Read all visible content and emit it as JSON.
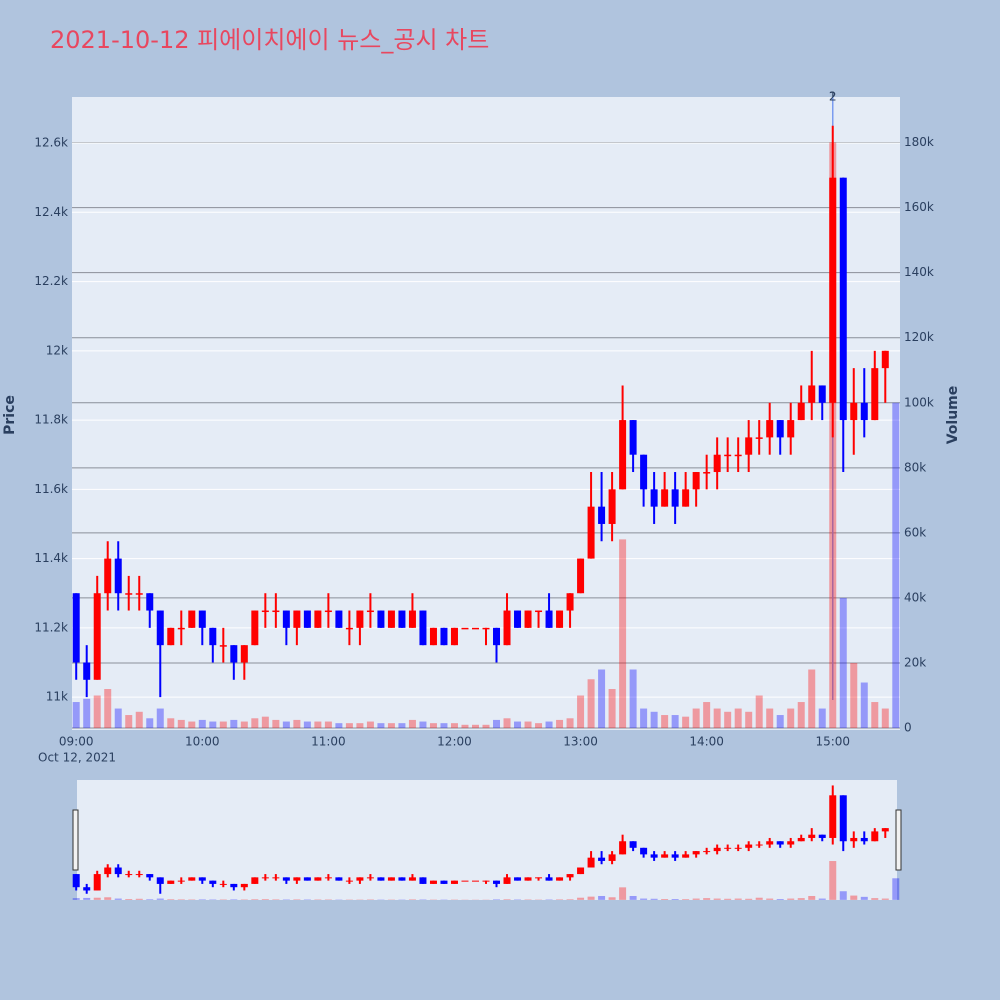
{
  "chart_data": {
    "type": "candlestick",
    "title": "2021-10-12 피에이치에이 뉴스_공시 차트",
    "ylabel": "Price",
    "y2label": "Volume",
    "x_date_label": "Oct 12, 2021",
    "increasing_color": "#ff0000",
    "decreasing_color": "#0000ff",
    "x": [
      "2021-10-12 09:00",
      "2021-10-12 09:05",
      "2021-10-12 09:10",
      "2021-10-12 09:15",
      "2021-10-12 09:20",
      "2021-10-12 09:25",
      "2021-10-12 09:30",
      "2021-10-12 09:35",
      "2021-10-12 09:40",
      "2021-10-12 09:45",
      "2021-10-12 09:50",
      "2021-10-12 09:55",
      "2021-10-12 10:00",
      "2021-10-12 10:05",
      "2021-10-12 10:10",
      "2021-10-12 10:15",
      "2021-10-12 10:20",
      "2021-10-12 10:25",
      "2021-10-12 10:30",
      "2021-10-12 10:35",
      "2021-10-12 10:40",
      "2021-10-12 10:45",
      "2021-10-12 10:50",
      "2021-10-12 10:55",
      "2021-10-12 11:00",
      "2021-10-12 11:05",
      "2021-10-12 11:10",
      "2021-10-12 11:15",
      "2021-10-12 11:20",
      "2021-10-12 11:25",
      "2021-10-12 11:30",
      "2021-10-12 11:35",
      "2021-10-12 11:40",
      "2021-10-12 11:45",
      "2021-10-12 11:50",
      "2021-10-12 11:55",
      "2021-10-12 12:00",
      "2021-10-12 12:05",
      "2021-10-12 12:10",
      "2021-10-12 12:15",
      "2021-10-12 12:20",
      "2021-10-12 12:25",
      "2021-10-12 12:30",
      "2021-10-12 12:35",
      "2021-10-12 12:40",
      "2021-10-12 12:45",
      "2021-10-12 12:50",
      "2021-10-12 12:55",
      "2021-10-12 13:00",
      "2021-10-12 13:05",
      "2021-10-12 13:10",
      "2021-10-12 13:15",
      "2021-10-12 13:20",
      "2021-10-12 13:25",
      "2021-10-12 13:30",
      "2021-10-12 13:35",
      "2021-10-12 13:40",
      "2021-10-12 13:45",
      "2021-10-12 13:50",
      "2021-10-12 13:55",
      "2021-10-12 14:00",
      "2021-10-12 14:05",
      "2021-10-12 14:10",
      "2021-10-12 14:15",
      "2021-10-12 14:20",
      "2021-10-12 14:25",
      "2021-10-12 14:30",
      "2021-10-12 14:35",
      "2021-10-12 14:40",
      "2021-10-12 14:45",
      "2021-10-12 14:50",
      "2021-10-12 14:55",
      "2021-10-12 15:00",
      "2021-10-12 15:05",
      "2021-10-12 15:10",
      "2021-10-12 15:15",
      "2021-10-12 15:20",
      "2021-10-12 15:25",
      "2021-10-12 15:30"
    ],
    "open": [
      11300,
      11100,
      11050,
      11300,
      11400,
      11300,
      11300,
      11300,
      11250,
      11150,
      11200,
      11200,
      11250,
      11200,
      11150,
      11150,
      11100,
      11150,
      11250,
      11250,
      11250,
      11200,
      11250,
      11200,
      11250,
      11250,
      11200,
      11200,
      11250,
      11250,
      11200,
      11250,
      11200,
      11250,
      11150,
      11200,
      11150,
      11200,
      11200,
      11200,
      11200,
      11150,
      11250,
      11200,
      11250,
      11250,
      11200,
      11250,
      11300,
      11400,
      11550,
      11500,
      11600,
      11800,
      11700,
      11600,
      11550,
      11600,
      11550,
      11600,
      11650,
      11650,
      11700,
      11700,
      11700,
      11750,
      11750,
      11800,
      11750,
      11800,
      11850,
      11900,
      11850,
      12500,
      11800,
      11850,
      11800,
      11950,
      null
    ],
    "high": [
      11300,
      11150,
      11350,
      11450,
      11450,
      11350,
      11350,
      11300,
      11250,
      11200,
      11250,
      11250,
      11250,
      11200,
      11200,
      11150,
      11150,
      11250,
      11300,
      11300,
      11250,
      11250,
      11250,
      11250,
      11300,
      11250,
      11250,
      11250,
      11300,
      11250,
      11250,
      11250,
      11300,
      11250,
      11200,
      11200,
      11200,
      11200,
      11200,
      11200,
      11200,
      11300,
      11250,
      11250,
      11250,
      11300,
      11250,
      11300,
      11400,
      11650,
      11650,
      11650,
      11900,
      11800,
      11700,
      11650,
      11650,
      11650,
      11650,
      11650,
      11700,
      11750,
      11750,
      11750,
      11800,
      11800,
      11850,
      11800,
      11850,
      11900,
      12000,
      11900,
      12650,
      12500,
      11950,
      11950,
      12000,
      12000,
      null
    ],
    "low": [
      11050,
      11000,
      11050,
      11250,
      11250,
      11250,
      11250,
      11200,
      11000,
      11150,
      11150,
      11200,
      11150,
      11100,
      11100,
      11050,
      11050,
      11150,
      11200,
      11200,
      11150,
      11150,
      11200,
      11200,
      11200,
      11200,
      11150,
      11150,
      11200,
      11200,
      11200,
      11200,
      11200,
      11150,
      11150,
      11150,
      11150,
      11200,
      11200,
      11150,
      11100,
      11150,
      11200,
      11200,
      11200,
      11200,
      11200,
      11200,
      11300,
      11400,
      11450,
      11450,
      11600,
      11650,
      11550,
      11500,
      11550,
      11500,
      11550,
      11550,
      11600,
      11600,
      11650,
      11650,
      11650,
      11700,
      11700,
      11700,
      11700,
      11800,
      11800,
      11800,
      11750,
      11650,
      11700,
      11750,
      11800,
      11850,
      null
    ],
    "close": [
      11100,
      11050,
      11300,
      11400,
      11300,
      11300,
      11300,
      11250,
      11150,
      11200,
      11200,
      11250,
      11200,
      11150,
      11150,
      11100,
      11150,
      11250,
      11250,
      11250,
      11200,
      11250,
      11200,
      11250,
      11250,
      11200,
      11200,
      11250,
      11250,
      11200,
      11250,
      11200,
      11250,
      11150,
      11200,
      11150,
      11200,
      11200,
      11200,
      11200,
      11150,
      11250,
      11200,
      11250,
      11250,
      11200,
      11250,
      11300,
      11400,
      11550,
      11500,
      11600,
      11800,
      11700,
      11600,
      11550,
      11600,
      11550,
      11600,
      11650,
      11650,
      11700,
      11700,
      11700,
      11750,
      11750,
      11800,
      11750,
      11800,
      11850,
      11900,
      11850,
      12500,
      11800,
      11850,
      11800,
      11950,
      12000,
      null
    ],
    "volume": [
      8000,
      9000,
      10000,
      12000,
      6000,
      4000,
      5000,
      3000,
      6000,
      3000,
      2500,
      2000,
      2500,
      2000,
      2000,
      2500,
      2000,
      3000,
      3500,
      2500,
      2000,
      2500,
      2000,
      2000,
      2000,
      1500,
      1500,
      1500,
      2000,
      1500,
      1500,
      1500,
      2500,
      2000,
      1500,
      1500,
      1500,
      1000,
      1000,
      1000,
      2500,
      3000,
      2000,
      2000,
      1500,
      2000,
      2500,
      3000,
      10000,
      15000,
      18000,
      12000,
      58000,
      18000,
      6000,
      5000,
      4000,
      4000,
      3500,
      6000,
      8000,
      6000,
      5000,
      6000,
      5000,
      10000,
      6000,
      4000,
      6000,
      8000,
      18000,
      6000,
      180000,
      40000,
      20000,
      14000,
      8000,
      6000,
      100000
    ],
    "xlim": [
      "2021-10-12 08:58",
      "2021-10-12 15:32"
    ],
    "xticks": [
      {
        "value": "2021-10-12 09:00",
        "label": "09:00"
      },
      {
        "value": "2021-10-12 10:00",
        "label": "10:00"
      },
      {
        "value": "2021-10-12 11:00",
        "label": "11:00"
      },
      {
        "value": "2021-10-12 12:00",
        "label": "12:00"
      },
      {
        "value": "2021-10-12 13:00",
        "label": "13:00"
      },
      {
        "value": "2021-10-12 14:00",
        "label": "14:00"
      },
      {
        "value": "2021-10-12 15:00",
        "label": "15:00"
      }
    ],
    "ylim": [
      10905,
      12733
    ],
    "yticks": [
      {
        "value": 11000,
        "label": "11k"
      },
      {
        "value": 11200,
        "label": "11.2k"
      },
      {
        "value": 11400,
        "label": "11.4k"
      },
      {
        "value": 11600,
        "label": "11.6k"
      },
      {
        "value": 11800,
        "label": "11.8k"
      },
      {
        "value": 12000,
        "label": "12k"
      },
      {
        "value": 12200,
        "label": "12.2k"
      },
      {
        "value": 12400,
        "label": "12.4k"
      },
      {
        "value": 12600,
        "label": "12.6k"
      }
    ],
    "y2lim": [
      -600,
      194000
    ],
    "y2ticks": [
      0,
      {
        "value": 20000,
        "label": "20k"
      },
      {
        "value": 40000,
        "label": "40k"
      },
      {
        "value": 60000,
        "label": "60k"
      },
      {
        "value": 80000,
        "label": "80k"
      },
      {
        "value": 100000,
        "label": "100k"
      },
      {
        "value": 120000,
        "label": "120k"
      },
      {
        "value": 140000,
        "label": "140k"
      },
      {
        "value": 160000,
        "label": "160k"
      },
      {
        "value": 180000,
        "label": "180k"
      }
    ],
    "annotations": [
      {
        "x": "2021-10-12 15:00",
        "text": "1"
      },
      {
        "x": "2021-10-12 15:00",
        "text": "2"
      }
    ]
  }
}
